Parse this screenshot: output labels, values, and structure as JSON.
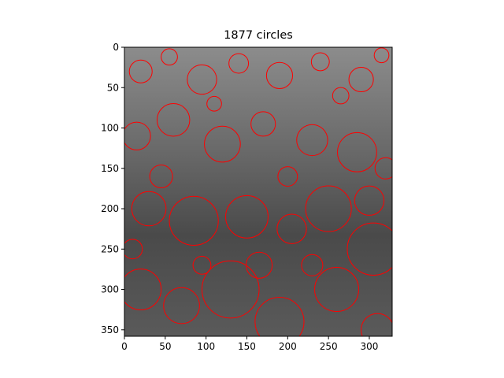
{
  "chart_data": {
    "type": "scatter",
    "title": "1877 circles",
    "xlabel": "",
    "ylabel": "",
    "xlim": [
      0,
      328
    ],
    "ylim": [
      358,
      0
    ],
    "x_ticks": [
      "0",
      "50",
      "100",
      "150",
      "200",
      "250",
      "300"
    ],
    "y_ticks": [
      "0",
      "50",
      "100",
      "150",
      "200",
      "250",
      "300",
      "350"
    ],
    "grid": false,
    "circle_color": "#ff0000",
    "background": "grayscale photograph of sunflower field",
    "circle_count": 1877,
    "sample_circles": [
      {
        "x": 20,
        "y": 30,
        "r": 14
      },
      {
        "x": 55,
        "y": 12,
        "r": 10
      },
      {
        "x": 95,
        "y": 40,
        "r": 18
      },
      {
        "x": 140,
        "y": 20,
        "r": 12
      },
      {
        "x": 190,
        "y": 35,
        "r": 16
      },
      {
        "x": 240,
        "y": 18,
        "r": 11
      },
      {
        "x": 290,
        "y": 40,
        "r": 15
      },
      {
        "x": 315,
        "y": 10,
        "r": 9
      },
      {
        "x": 15,
        "y": 110,
        "r": 17
      },
      {
        "x": 60,
        "y": 90,
        "r": 20
      },
      {
        "x": 120,
        "y": 120,
        "r": 22
      },
      {
        "x": 170,
        "y": 95,
        "r": 15
      },
      {
        "x": 230,
        "y": 115,
        "r": 19
      },
      {
        "x": 285,
        "y": 130,
        "r": 24
      },
      {
        "x": 320,
        "y": 150,
        "r": 13
      },
      {
        "x": 30,
        "y": 200,
        "r": 21
      },
      {
        "x": 85,
        "y": 215,
        "r": 30
      },
      {
        "x": 150,
        "y": 210,
        "r": 26
      },
      {
        "x": 205,
        "y": 225,
        "r": 18
      },
      {
        "x": 250,
        "y": 200,
        "r": 28
      },
      {
        "x": 305,
        "y": 250,
        "r": 32
      },
      {
        "x": 20,
        "y": 300,
        "r": 25
      },
      {
        "x": 70,
        "y": 320,
        "r": 22
      },
      {
        "x": 130,
        "y": 300,
        "r": 35
      },
      {
        "x": 190,
        "y": 340,
        "r": 30
      },
      {
        "x": 260,
        "y": 300,
        "r": 27
      },
      {
        "x": 310,
        "y": 350,
        "r": 20
      },
      {
        "x": 110,
        "y": 70,
        "r": 9
      },
      {
        "x": 200,
        "y": 160,
        "r": 12
      },
      {
        "x": 45,
        "y": 160,
        "r": 14
      },
      {
        "x": 265,
        "y": 60,
        "r": 10
      },
      {
        "x": 165,
        "y": 270,
        "r": 16
      },
      {
        "x": 230,
        "y": 270,
        "r": 13
      },
      {
        "x": 95,
        "y": 270,
        "r": 11
      },
      {
        "x": 300,
        "y": 190,
        "r": 18
      },
      {
        "x": 10,
        "y": 250,
        "r": 12
      }
    ]
  }
}
